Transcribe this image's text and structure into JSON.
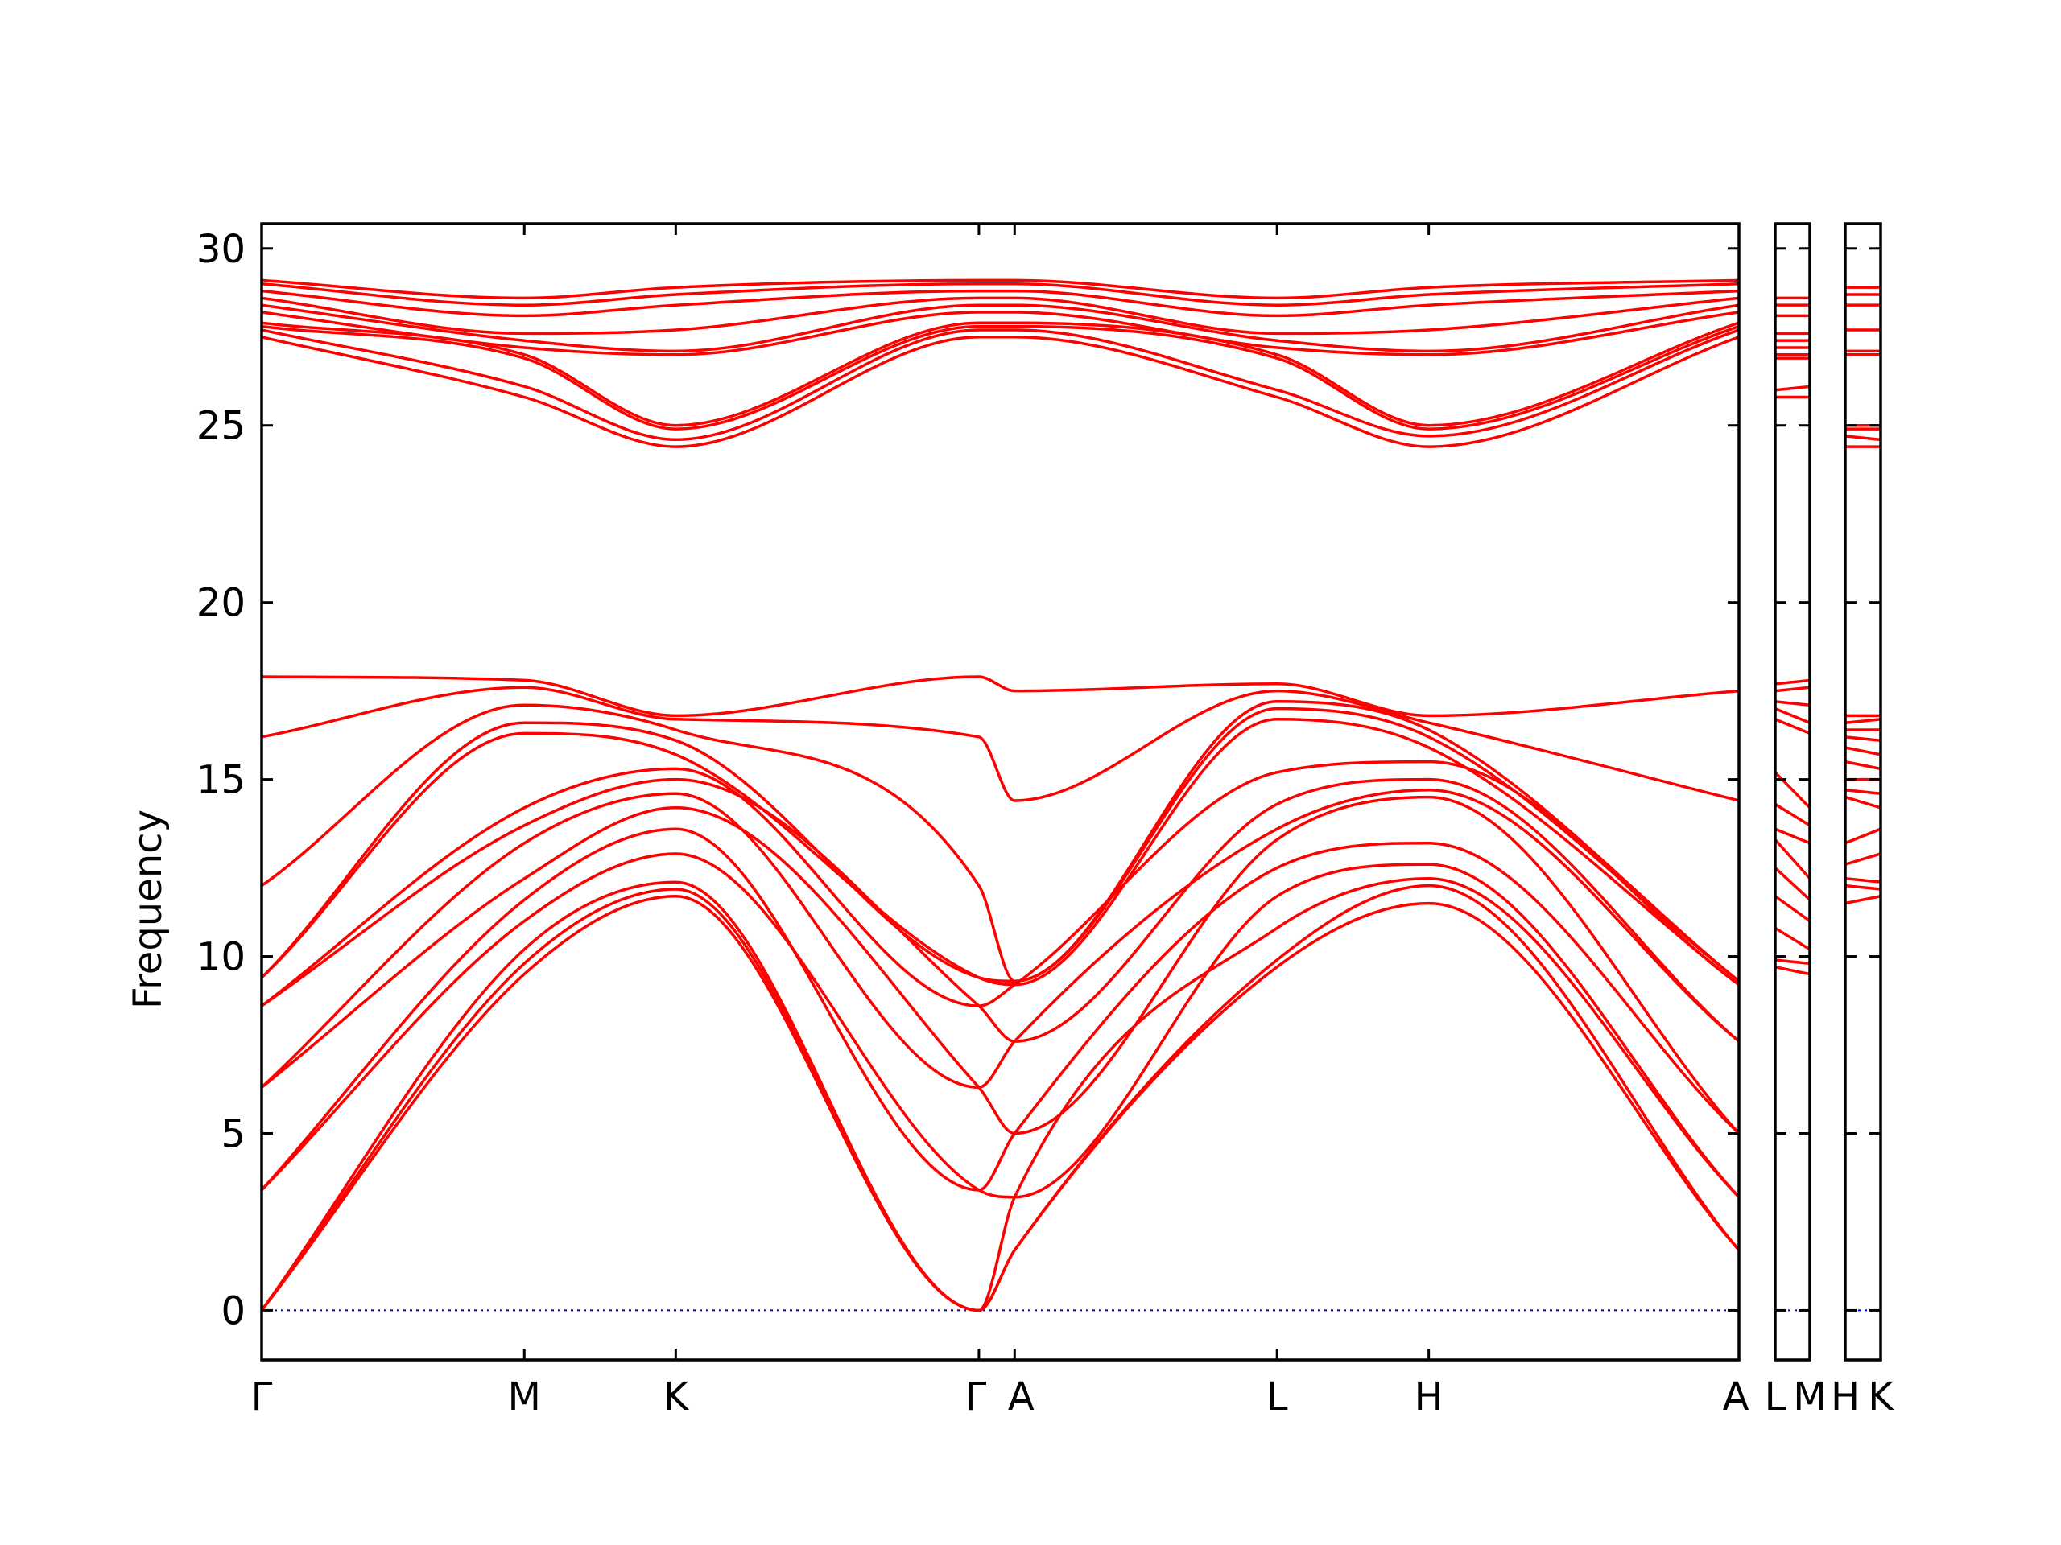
{
  "chart_data": {
    "type": "line",
    "ylabel": "Frequency",
    "xlabel": "",
    "ylim": [
      -1.4,
      30.7
    ],
    "y_ticks": [
      0,
      5,
      10,
      15,
      20,
      25,
      30
    ],
    "grid": false,
    "legend": "none",
    "colors": {
      "bands": "#ff0000",
      "zero_line": "#0000cc",
      "frame": "#000000"
    },
    "panels": [
      {
        "id": "main",
        "path_labels": [
          {
            "label": "Γ",
            "x": 0.0
          },
          {
            "label": "M",
            "x": 0.1778
          },
          {
            "label": "K",
            "x": 0.2803
          },
          {
            "label": "Γ",
            "x": 0.4855
          },
          {
            "label": "A",
            "x": 0.5097
          },
          {
            "label": "L",
            "x": 0.6873
          },
          {
            "label": "H",
            "x": 0.79
          },
          {
            "label": "A",
            "x": 1.0
          }
        ],
        "bands": [
          {
            "x": [
              0,
              0.1778,
              0.2803,
              0.4855,
              0.5097,
              0.6873,
              0.79,
              1.0
            ],
            "y": [
              0.0,
              9.5,
              11.7,
              0.0,
              1.7,
              9.7,
              11.5,
              1.7
            ]
          },
          {
            "x": [
              0,
              0.1778,
              0.2803,
              0.4855,
              0.5097,
              0.6873,
              0.79,
              1.0
            ],
            "y": [
              0.0,
              9.8,
              11.9,
              0.0,
              1.7,
              9.9,
              12.0,
              1.7
            ]
          },
          {
            "x": [
              0,
              0.1778,
              0.2803,
              0.4855,
              0.5097,
              0.6873,
              0.79,
              1.0
            ],
            "y": [
              0.0,
              10.2,
              12.1,
              0.0,
              3.2,
              10.8,
              12.2,
              3.2
            ]
          },
          {
            "x": [
              0,
              0.1778,
              0.2803,
              0.4855,
              0.5097,
              0.6873,
              0.79,
              1.0
            ],
            "y": [
              3.4,
              11.0,
              12.9,
              3.4,
              3.2,
              11.7,
              12.6,
              3.2
            ]
          },
          {
            "x": [
              0,
              0.1778,
              0.2803,
              0.4855,
              0.5097,
              0.6873,
              0.79,
              1.0
            ],
            "y": [
              3.4,
              11.6,
              13.6,
              3.4,
              5.0,
              12.5,
              13.2,
              5.0
            ]
          },
          {
            "x": [
              0,
              0.1778,
              0.2803,
              0.4855,
              0.5097,
              0.6873,
              0.79,
              1.0
            ],
            "y": [
              6.3,
              12.2,
              14.2,
              6.3,
              5.0,
              13.3,
              14.5,
              5.0
            ]
          },
          {
            "x": [
              0,
              0.1778,
              0.2803,
              0.4855,
              0.5097,
              0.6873,
              0.79,
              1.0
            ],
            "y": [
              6.3,
              13.2,
              14.6,
              6.3,
              7.6,
              13.6,
              14.7,
              7.6
            ]
          },
          {
            "x": [
              0,
              0.1778,
              0.2803,
              0.4855,
              0.5097,
              0.6873,
              0.79,
              1.0
            ],
            "y": [
              8.6,
              13.7,
              15.0,
              8.6,
              7.6,
              14.3,
              15.0,
              7.6
            ]
          },
          {
            "x": [
              0,
              0.1778,
              0.2803,
              0.4855,
              0.5097,
              0.6873,
              0.79,
              1.0
            ],
            "y": [
              8.6,
              14.2,
              15.3,
              8.6,
              9.2,
              15.2,
              15.5,
              9.2
            ]
          },
          {
            "x": [
              0,
              0.1778,
              0.2803,
              0.4855,
              0.5097,
              0.6873,
              0.79,
              1.0
            ],
            "y": [
              9.4,
              16.3,
              15.7,
              9.4,
              9.2,
              16.7,
              15.9,
              9.2
            ]
          },
          {
            "x": [
              0,
              0.1778,
              0.2803,
              0.4855,
              0.5097,
              0.6873,
              0.79,
              1.0
            ],
            "y": [
              9.4,
              16.6,
              16.1,
              9.4,
              9.3,
              17.0,
              16.2,
              9.3
            ]
          },
          {
            "x": [
              0,
              0.1778,
              0.2803,
              0.4855,
              0.5097,
              0.6873,
              0.79,
              1.0
            ],
            "y": [
              12.0,
              17.1,
              16.4,
              12.0,
              9.3,
              17.2,
              16.4,
              9.3
            ]
          },
          {
            "x": [
              0,
              0.1778,
              0.2803,
              0.4855,
              0.5097,
              0.6873,
              0.79,
              1.0
            ],
            "y": [
              16.2,
              17.6,
              16.7,
              16.2,
              14.4,
              17.5,
              16.6,
              14.4
            ]
          },
          {
            "x": [
              0,
              0.1778,
              0.2803,
              0.4855,
              0.5097,
              0.6873,
              0.79,
              1.0
            ],
            "y": [
              17.9,
              17.8,
              16.8,
              17.9,
              17.5,
              17.7,
              16.8,
              17.5
            ]
          },
          {
            "x": [
              0,
              0.1778,
              0.2803,
              0.4855,
              0.5097,
              0.6873,
              0.79,
              1.0
            ],
            "y": [
              27.5,
              25.8,
              24.4,
              27.5,
              27.5,
              25.8,
              24.4,
              27.5
            ]
          },
          {
            "x": [
              0,
              0.1778,
              0.2803,
              0.4855,
              0.5097,
              0.6873,
              0.79,
              1.0
            ],
            "y": [
              27.7,
              26.1,
              24.6,
              27.7,
              27.7,
              26.0,
              24.7,
              27.7
            ]
          },
          {
            "x": [
              0,
              0.1778,
              0.2803,
              0.4855,
              0.5097,
              0.6873,
              0.79,
              1.0
            ],
            "y": [
              27.8,
              26.9,
              24.9,
              27.8,
              27.8,
              26.9,
              24.9,
              27.8
            ]
          },
          {
            "x": [
              0,
              0.1778,
              0.2803,
              0.4855,
              0.5097,
              0.6873,
              0.79,
              1.0
            ],
            "y": [
              27.9,
              27.0,
              25.0,
              27.9,
              27.9,
              27.0,
              25.0,
              27.9
            ]
          },
          {
            "x": [
              0,
              0.1778,
              0.2803,
              0.4855,
              0.5097,
              0.6873,
              0.79,
              1.0
            ],
            "y": [
              28.2,
              27.2,
              27.0,
              28.2,
              28.2,
              27.2,
              27.0,
              28.2
            ]
          },
          {
            "x": [
              0,
              0.1778,
              0.2803,
              0.4855,
              0.5097,
              0.6873,
              0.79,
              1.0
            ],
            "y": [
              28.4,
              27.4,
              27.1,
              28.4,
              28.4,
              27.4,
              27.1,
              28.4
            ]
          },
          {
            "x": [
              0,
              0.1778,
              0.2803,
              0.4855,
              0.5097,
              0.6873,
              0.79,
              1.0
            ],
            "y": [
              28.6,
              27.6,
              27.7,
              28.6,
              28.6,
              27.6,
              27.7,
              28.6
            ]
          },
          {
            "x": [
              0,
              0.1778,
              0.2803,
              0.4855,
              0.5097,
              0.6873,
              0.79,
              1.0
            ],
            "y": [
              28.8,
              28.1,
              28.4,
              28.8,
              28.8,
              28.1,
              28.4,
              28.8
            ]
          },
          {
            "x": [
              0,
              0.1778,
              0.2803,
              0.4855,
              0.5097,
              0.6873,
              0.79,
              1.0
            ],
            "y": [
              29.0,
              28.4,
              28.7,
              29.0,
              29.0,
              28.4,
              28.7,
              29.0
            ]
          },
          {
            "x": [
              0,
              0.1778,
              0.2803,
              0.4855,
              0.5097,
              0.6873,
              0.79,
              1.0
            ],
            "y": [
              29.1,
              28.6,
              28.9,
              29.1,
              29.1,
              28.6,
              28.9,
              29.1
            ]
          }
        ]
      },
      {
        "id": "L-M",
        "path_labels": [
          {
            "label": "L",
            "x": 0.0
          },
          {
            "label": "M",
            "x": 1.0
          }
        ],
        "bands": [
          {
            "x": [
              0,
              1
            ],
            "y": [
              9.7,
              9.5
            ]
          },
          {
            "x": [
              0,
              1
            ],
            "y": [
              9.9,
              9.8
            ]
          },
          {
            "x": [
              0,
              1
            ],
            "y": [
              10.8,
              10.2
            ]
          },
          {
            "x": [
              0,
              1
            ],
            "y": [
              11.7,
              11.0
            ]
          },
          {
            "x": [
              0,
              1
            ],
            "y": [
              12.5,
              11.6
            ]
          },
          {
            "x": [
              0,
              1
            ],
            "y": [
              13.3,
              12.2
            ]
          },
          {
            "x": [
              0,
              1
            ],
            "y": [
              13.6,
              13.2
            ]
          },
          {
            "x": [
              0,
              1
            ],
            "y": [
              14.3,
              13.7
            ]
          },
          {
            "x": [
              0,
              1
            ],
            "y": [
              15.2,
              14.2
            ]
          },
          {
            "x": [
              0,
              1
            ],
            "y": [
              16.7,
              16.3
            ]
          },
          {
            "x": [
              0,
              1
            ],
            "y": [
              17.0,
              16.6
            ]
          },
          {
            "x": [
              0,
              1
            ],
            "y": [
              17.2,
              17.1
            ]
          },
          {
            "x": [
              0,
              1
            ],
            "y": [
              17.5,
              17.6
            ]
          },
          {
            "x": [
              0,
              1
            ],
            "y": [
              17.7,
              17.8
            ]
          },
          {
            "x": [
              0,
              1
            ],
            "y": [
              25.8,
              25.8
            ]
          },
          {
            "x": [
              0,
              1
            ],
            "y": [
              26.0,
              26.1
            ]
          },
          {
            "x": [
              0,
              1
            ],
            "y": [
              26.9,
              26.9
            ]
          },
          {
            "x": [
              0,
              1
            ],
            "y": [
              27.0,
              27.0
            ]
          },
          {
            "x": [
              0,
              1
            ],
            "y": [
              27.2,
              27.2
            ]
          },
          {
            "x": [
              0,
              1
            ],
            "y": [
              27.4,
              27.4
            ]
          },
          {
            "x": [
              0,
              1
            ],
            "y": [
              27.6,
              27.6
            ]
          },
          {
            "x": [
              0,
              1
            ],
            "y": [
              28.1,
              28.1
            ]
          },
          {
            "x": [
              0,
              1
            ],
            "y": [
              28.4,
              28.4
            ]
          },
          {
            "x": [
              0,
              1
            ],
            "y": [
              28.6,
              28.6
            ]
          }
        ]
      },
      {
        "id": "H-K",
        "path_labels": [
          {
            "label": "H",
            "x": 0.0
          },
          {
            "label": "K",
            "x": 1.0
          }
        ],
        "bands": [
          {
            "x": [
              0,
              1
            ],
            "y": [
              11.5,
              11.7
            ]
          },
          {
            "x": [
              0,
              1
            ],
            "y": [
              12.0,
              11.9
            ]
          },
          {
            "x": [
              0,
              1
            ],
            "y": [
              12.2,
              12.1
            ]
          },
          {
            "x": [
              0,
              1
            ],
            "y": [
              12.6,
              12.9
            ]
          },
          {
            "x": [
              0,
              1
            ],
            "y": [
              13.2,
              13.6
            ]
          },
          {
            "x": [
              0,
              1
            ],
            "y": [
              14.5,
              14.2
            ]
          },
          {
            "x": [
              0,
              1
            ],
            "y": [
              14.7,
              14.6
            ]
          },
          {
            "x": [
              0,
              1
            ],
            "y": [
              15.0,
              15.0
            ]
          },
          {
            "x": [
              0,
              1
            ],
            "y": [
              15.5,
              15.3
            ]
          },
          {
            "x": [
              0,
              1
            ],
            "y": [
              15.9,
              15.7
            ]
          },
          {
            "x": [
              0,
              1
            ],
            "y": [
              16.2,
              16.1
            ]
          },
          {
            "x": [
              0,
              1
            ],
            "y": [
              16.4,
              16.4
            ]
          },
          {
            "x": [
              0,
              1
            ],
            "y": [
              16.6,
              16.7
            ]
          },
          {
            "x": [
              0,
              1
            ],
            "y": [
              16.8,
              16.8
            ]
          },
          {
            "x": [
              0,
              1
            ],
            "y": [
              24.4,
              24.4
            ]
          },
          {
            "x": [
              0,
              1
            ],
            "y": [
              24.7,
              24.6
            ]
          },
          {
            "x": [
              0,
              1
            ],
            "y": [
              24.9,
              24.9
            ]
          },
          {
            "x": [
              0,
              1
            ],
            "y": [
              25.0,
              25.0
            ]
          },
          {
            "x": [
              0,
              1
            ],
            "y": [
              27.0,
              27.0
            ]
          },
          {
            "x": [
              0,
              1
            ],
            "y": [
              27.1,
              27.1
            ]
          },
          {
            "x": [
              0,
              1
            ],
            "y": [
              27.7,
              27.7
            ]
          },
          {
            "x": [
              0,
              1
            ],
            "y": [
              28.4,
              28.4
            ]
          },
          {
            "x": [
              0,
              1
            ],
            "y": [
              28.7,
              28.7
            ]
          },
          {
            "x": [
              0,
              1
            ],
            "y": [
              28.9,
              28.9
            ]
          }
        ]
      }
    ]
  }
}
